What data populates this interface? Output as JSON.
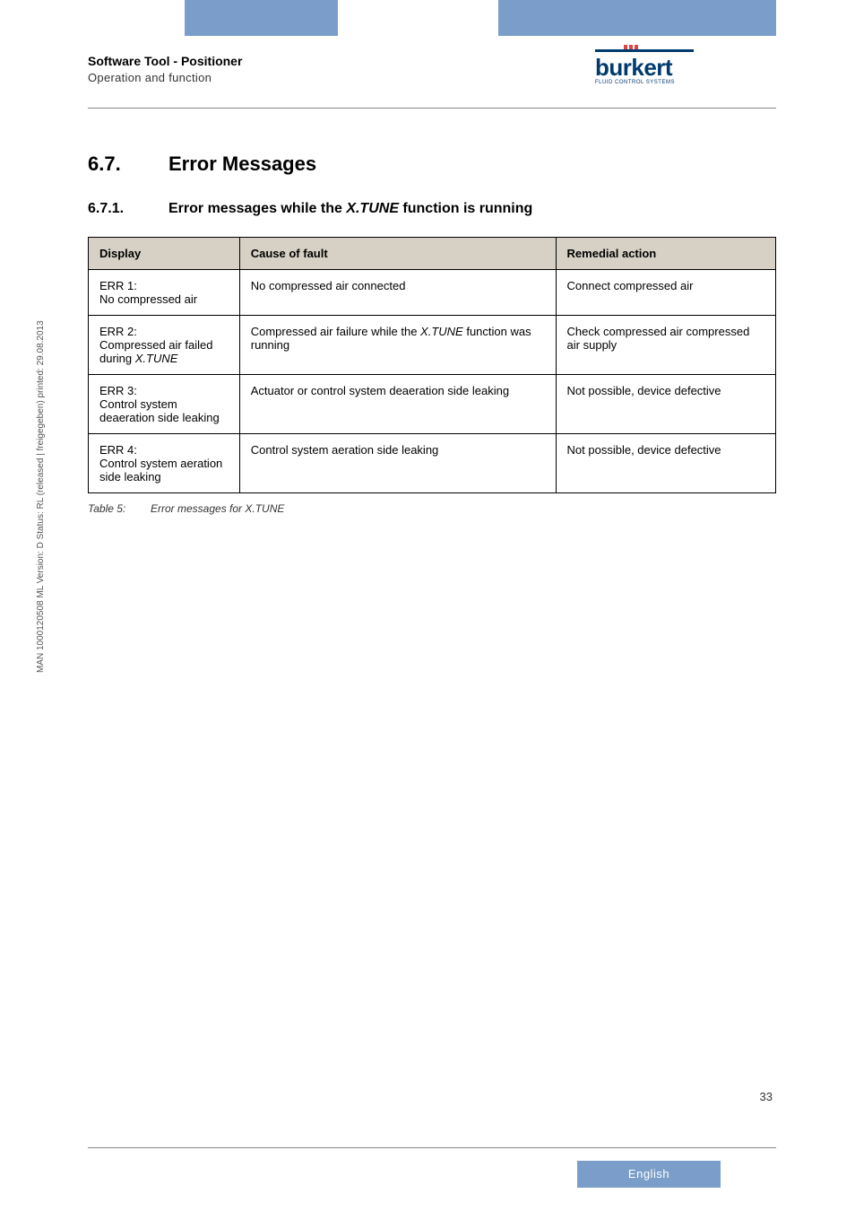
{
  "colors": {
    "header_bar": "#7a9ec9",
    "logo_primary": "#003b6f",
    "logo_accent": "#d44",
    "table_header_bg": "#d6d1c4",
    "rule": "#888888",
    "text": "#000000",
    "side_text": "#555555"
  },
  "typography": {
    "body_family": "Arial, Helvetica, sans-serif",
    "h2_size_pt": 16,
    "h3_size_pt": 12,
    "body_size_pt": 10,
    "caption_size_pt": 9
  },
  "header": {
    "title": "Software Tool - Positioner",
    "subtitle": "Operation and function",
    "logo_text": "burkert",
    "logo_tagline": "FLUID CONTROL SYSTEMS"
  },
  "section": {
    "number": "6.7.",
    "title": "Error Messages"
  },
  "subsection": {
    "number": "6.7.1.",
    "title_prefix": "Error messages while the ",
    "title_func": "X.TUNE",
    "title_suffix": " function is running"
  },
  "table": {
    "columns": [
      "Display",
      "Cause of fault",
      "Remedial action"
    ],
    "column_widths_pct": [
      22,
      46,
      32
    ],
    "rows": [
      {
        "display_line1": "ERR 1:",
        "display_line2": "No compressed air",
        "cause": "No compressed air connected",
        "cause_italic": "",
        "cause_suffix": "",
        "action": "Connect compressed air"
      },
      {
        "display_line1": "ERR 2:",
        "display_line2": "Compressed air failed during ",
        "display_italic": "X.TUNE",
        "cause": "Compressed air failure while the ",
        "cause_italic": "X.TUNE",
        "cause_suffix": " function was running",
        "action": "Check compressed air compressed air supply"
      },
      {
        "display_line1": "ERR 3:",
        "display_line2": "Control system deaeration side leaking",
        "cause": "Actuator or control system deaeration side leaking",
        "cause_italic": "",
        "cause_suffix": "",
        "action": "Not possible, device defective"
      },
      {
        "display_line1": "ERR 4:",
        "display_line2": "Control system aeration side leaking",
        "cause": "Control system aeration side leaking",
        "cause_italic": "",
        "cause_suffix": "",
        "action": "Not possible, device defective"
      }
    ],
    "caption_label": "Table 5:",
    "caption_text": "Error messages for X.TUNE"
  },
  "side_text": "MAN 1000120508 ML Version: D Status: RL (released | freigegeben) printed: 29.08.2013",
  "page_number": "33",
  "language_tab": "English"
}
